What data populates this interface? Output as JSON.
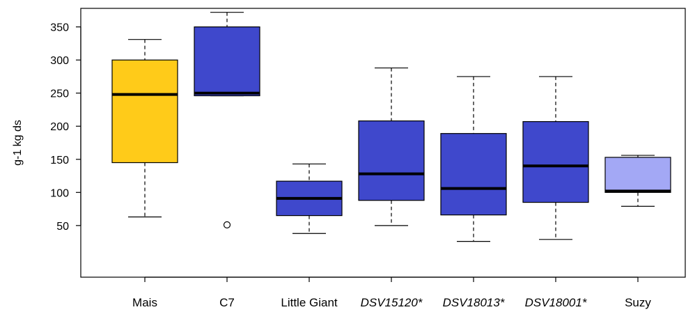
{
  "chart_data": {
    "type": "boxplot",
    "title": "",
    "xlabel": "",
    "ylabel": "g-1 kg ds",
    "ylim": [
      -28,
      378
    ],
    "yticks": [
      50,
      100,
      150,
      200,
      250,
      300,
      350
    ],
    "grid": false,
    "categories": [
      {
        "name": "Mais",
        "italic": false,
        "color": "#FFCB19",
        "whisker_low": 63,
        "q1": 145,
        "median": 248,
        "q3": 300,
        "whisker_high": 331,
        "outliers": []
      },
      {
        "name": "C7",
        "italic": false,
        "color": "#3F48CC",
        "whisker_low": 246,
        "q1": 246,
        "median": 250,
        "q3": 350,
        "whisker_high": 372,
        "outliers": [
          51
        ]
      },
      {
        "name": "Little Giant",
        "italic": false,
        "color": "#3F48CC",
        "whisker_low": 38,
        "q1": 65,
        "median": 91,
        "q3": 117,
        "whisker_high": 143,
        "outliers": []
      },
      {
        "name": "DSV15120*",
        "italic": true,
        "color": "#3F48CC",
        "whisker_low": 50,
        "q1": 88,
        "median": 128,
        "q3": 208,
        "whisker_high": 288,
        "outliers": []
      },
      {
        "name": "DSV18013*",
        "italic": true,
        "color": "#3F48CC",
        "whisker_low": 26,
        "q1": 66,
        "median": 106,
        "q3": 189,
        "whisker_high": 275,
        "outliers": []
      },
      {
        "name": "DSV18001*",
        "italic": true,
        "color": "#3F48CC",
        "whisker_low": 29,
        "q1": 85,
        "median": 140,
        "q3": 207,
        "whisker_high": 275,
        "outliers": []
      },
      {
        "name": "Suzy",
        "italic": false,
        "color": "#A3A8F5",
        "whisker_low": 79,
        "q1": 100,
        "median": 102,
        "q3": 153,
        "whisker_high": 156,
        "outliers": []
      }
    ]
  }
}
